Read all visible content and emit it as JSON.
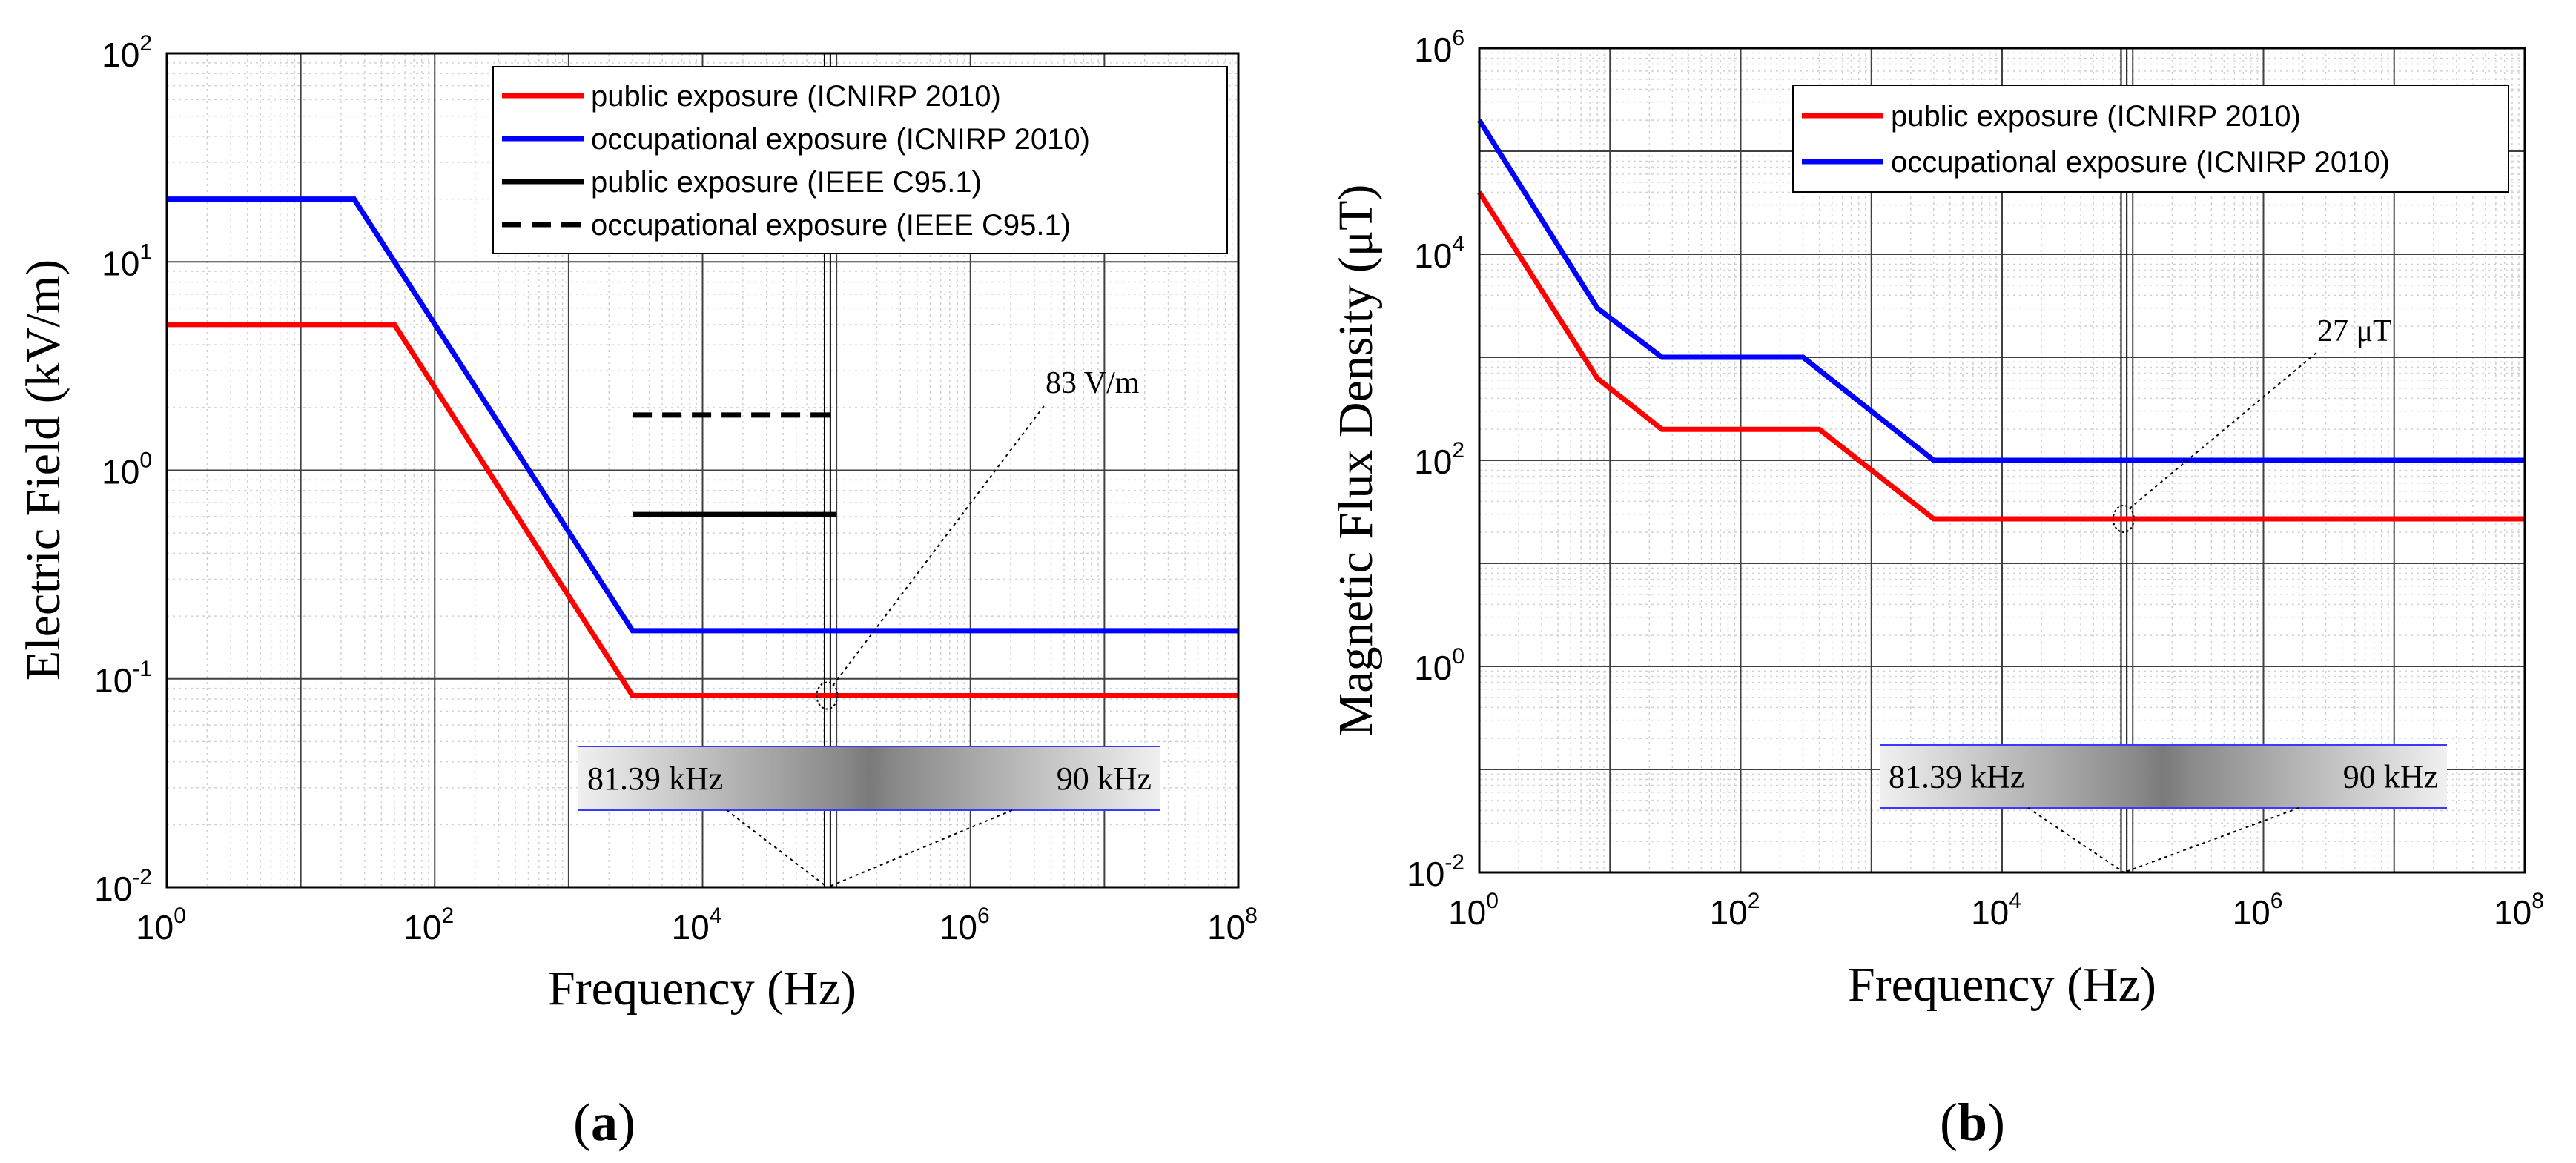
{
  "chart_data": [
    {
      "type": "line",
      "panel_label": "a",
      "xlabel": "Frequency (Hz)",
      "ylabel": "Electric Field (kV/m)",
      "x_scale": "log",
      "y_scale": "log",
      "xlim": [
        1,
        100000000
      ],
      "ylim": [
        0.01,
        100
      ],
      "x_ticks": [
        {
          "base": "10",
          "exp": "0",
          "value": 1
        },
        {
          "base": "10",
          "exp": "2",
          "value": 100
        },
        {
          "base": "10",
          "exp": "4",
          "value": 10000
        },
        {
          "base": "10",
          "exp": "6",
          "value": 1000000
        },
        {
          "base": "10",
          "exp": "8",
          "value": 100000000
        }
      ],
      "y_ticks": [
        {
          "base": "10",
          "exp": "-2",
          "value": 0.01
        },
        {
          "base": "10",
          "exp": "-1",
          "value": 0.1
        },
        {
          "base": "10",
          "exp": "0",
          "value": 1
        },
        {
          "base": "10",
          "exp": "1",
          "value": 10
        },
        {
          "base": "10",
          "exp": "2",
          "value": 100
        }
      ],
      "grid": true,
      "legend_position": "top-right",
      "series": [
        {
          "name": "public exposure (ICNIRP 2010)",
          "color": "#ff0000",
          "style": "solid",
          "x": [
            1,
            50,
            3000,
            100000000
          ],
          "y": [
            5,
            5,
            0.083,
            0.083
          ]
        },
        {
          "name": "occupational exposure (ICNIRP 2010)",
          "color": "#0000ff",
          "style": "solid",
          "x": [
            1,
            25,
            3000,
            100000000
          ],
          "y": [
            20,
            20,
            0.17,
            0.17
          ]
        },
        {
          "name": "public exposure (IEEE C95.1)",
          "color": "#000000",
          "style": "solid",
          "x": [
            3000,
            100000
          ],
          "y": [
            0.614,
            0.614
          ]
        },
        {
          "name": "occupational exposure (IEEE C95.1)",
          "color": "#000000",
          "style": "dashed",
          "x": [
            3000,
            100000
          ],
          "y": [
            1.842,
            1.842
          ]
        }
      ],
      "band": {
        "x_start": 81390,
        "x_end": 90000,
        "label_start": "81.39 kHz",
        "label_end": "90 kHz"
      },
      "annotation": {
        "text": "83 V/m",
        "x": 85000,
        "y": 0.083
      }
    },
    {
      "type": "line",
      "panel_label": "b",
      "xlabel": "Frequency (Hz)",
      "ylabel": "Magnetic Flux Density (μT)",
      "x_scale": "log",
      "y_scale": "log",
      "xlim": [
        1,
        100000000
      ],
      "ylim": [
        0.01,
        1000000
      ],
      "x_ticks": [
        {
          "base": "10",
          "exp": "0",
          "value": 1
        },
        {
          "base": "10",
          "exp": "2",
          "value": 100
        },
        {
          "base": "10",
          "exp": "4",
          "value": 10000
        },
        {
          "base": "10",
          "exp": "6",
          "value": 1000000
        },
        {
          "base": "10",
          "exp": "8",
          "value": 100000000
        }
      ],
      "y_ticks": [
        {
          "base": "10",
          "exp": "-2",
          "value": 0.01
        },
        {
          "base": "10",
          "exp": "0",
          "value": 1
        },
        {
          "base": "10",
          "exp": "2",
          "value": 100
        },
        {
          "base": "10",
          "exp": "4",
          "value": 10000
        },
        {
          "base": "10",
          "exp": "6",
          "value": 1000000
        }
      ],
      "grid": true,
      "legend_position": "top-right",
      "series": [
        {
          "name": "public exposure (ICNIRP 2010)",
          "color": "#ff0000",
          "style": "solid",
          "x": [
            1,
            8,
            25,
            400,
            3000,
            100000000
          ],
          "y": [
            40000,
            625,
            200,
            200,
            27,
            27
          ]
        },
        {
          "name": "occupational exposure (ICNIRP 2010)",
          "color": "#0000ff",
          "style": "solid",
          "x": [
            1,
            8,
            25,
            300,
            3000,
            100000000
          ],
          "y": [
            200000,
            3000,
            1000,
            1000,
            100,
            100
          ]
        }
      ],
      "band": {
        "x_start": 81390,
        "x_end": 90000,
        "label_start": "81.39 kHz",
        "label_end": "90 kHz"
      },
      "annotation": {
        "text": "27 μT",
        "x": 85000,
        "y": 27
      }
    }
  ]
}
